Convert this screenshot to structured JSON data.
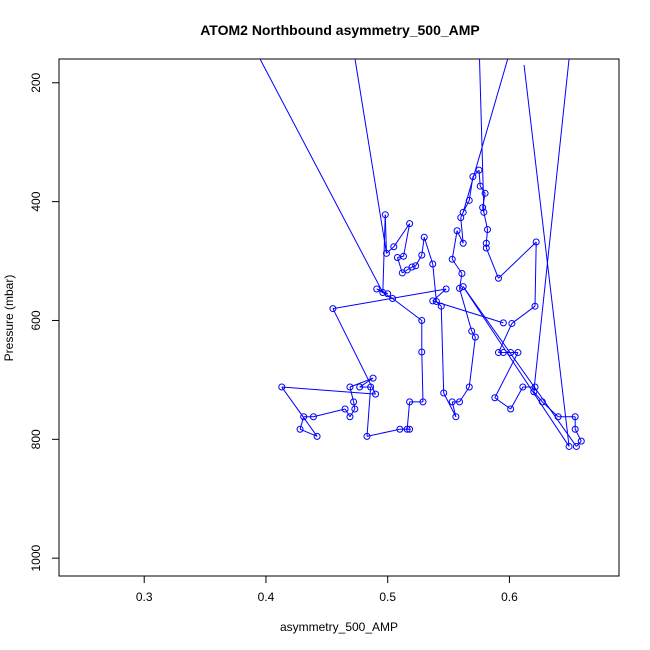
{
  "chart_data": {
    "type": "line",
    "title": "ATOM2 Northbound asymmetry_500_AMP",
    "xlabel": "asymmetry_500_AMP",
    "ylabel": "Pressure (mbar)",
    "xlim": [
      0.23,
      0.69
    ],
    "ylim": [
      1030,
      160
    ],
    "y_reversed": true,
    "x_ticks": [
      0.3,
      0.4,
      0.5,
      0.6
    ],
    "x_tick_labels": [
      "0.3",
      "0.4",
      "0.5",
      "0.6"
    ],
    "y_ticks": [
      200,
      400,
      600,
      800,
      1000
    ],
    "y_tick_labels": [
      "200",
      "400",
      "600",
      "800",
      "1000"
    ],
    "grid": false,
    "legend": "none",
    "series_color": "#0000ff",
    "points": [
      [
        0.649,
        812
      ],
      [
        0.655,
        812
      ],
      [
        0.659,
        803
      ],
      [
        0.654,
        783
      ],
      [
        0.654,
        762
      ],
      [
        0.64,
        762
      ],
      [
        0.627,
        737
      ],
      [
        0.62,
        720
      ],
      [
        0.621,
        712
      ],
      [
        0.611,
        712
      ],
      [
        0.601,
        749
      ],
      [
        0.588,
        730
      ],
      [
        0.607,
        654
      ],
      [
        0.601,
        654
      ],
      [
        0.595,
        654
      ],
      [
        0.591,
        654
      ],
      [
        0.602,
        605
      ],
      [
        0.621,
        576
      ],
      [
        0.622,
        468
      ],
      [
        0.591,
        529
      ],
      [
        0.581,
        478
      ],
      [
        0.581,
        470
      ],
      [
        0.582,
        447
      ],
      [
        0.579,
        418
      ],
      [
        0.578,
        410
      ],
      [
        0.58,
        386
      ],
      [
        0.576,
        374
      ],
      [
        0.575,
        347
      ],
      [
        0.57,
        358
      ],
      [
        0.567,
        398
      ],
      [
        0.562,
        418
      ],
      [
        0.56,
        427
      ],
      [
        0.562,
        470
      ],
      [
        0.557,
        449
      ],
      [
        0.553,
        497
      ],
      [
        0.561,
        521
      ],
      [
        0.559,
        546
      ],
      [
        0.569,
        618
      ],
      [
        0.572,
        628
      ],
      [
        0.567,
        712
      ],
      [
        0.559,
        737
      ],
      [
        0.553,
        737
      ],
      [
        0.556,
        762
      ],
      [
        0.546,
        722
      ],
      [
        0.544,
        576
      ],
      [
        0.54,
        568
      ],
      [
        0.537,
        505
      ],
      [
        0.53,
        460
      ],
      [
        0.528,
        490
      ],
      [
        0.523,
        508
      ],
      [
        0.52,
        510
      ],
      [
        0.516,
        515
      ],
      [
        0.512,
        520
      ],
      [
        0.508,
        494
      ],
      [
        0.513,
        492
      ],
      [
        0.518,
        437
      ],
      [
        0.505,
        476
      ],
      [
        0.499,
        487
      ],
      [
        0.498,
        422
      ],
      [
        0.496,
        553
      ],
      [
        0.5,
        555
      ],
      [
        0.491,
        547
      ],
      [
        0.504,
        563
      ],
      [
        0.528,
        600
      ],
      [
        0.528,
        653
      ],
      [
        0.529,
        737
      ],
      [
        0.518,
        737
      ],
      [
        0.516,
        783
      ],
      [
        0.518,
        783
      ],
      [
        0.51,
        783
      ],
      [
        0.483,
        795
      ],
      [
        0.486,
        712
      ],
      [
        0.477,
        712
      ],
      [
        0.488,
        697
      ],
      [
        0.469,
        712
      ],
      [
        0.472,
        737
      ],
      [
        0.473,
        749
      ],
      [
        0.469,
        762
      ],
      [
        0.465,
        749
      ],
      [
        0.439,
        762
      ],
      [
        0.431,
        762
      ],
      [
        0.428,
        783
      ],
      [
        0.442,
        795
      ],
      [
        0.413,
        712
      ],
      [
        0.49,
        724
      ],
      [
        0.455,
        580
      ],
      [
        0.548,
        547
      ],
      [
        0.537,
        567
      ],
      [
        0.562,
        543
      ],
      [
        0.595,
        604
      ]
    ],
    "line_order": [
      0,
      88,
      1,
      2,
      3,
      4,
      5,
      6,
      7,
      8,
      9,
      10,
      11,
      12,
      13,
      14,
      15,
      16,
      17,
      18,
      19,
      20,
      21,
      22,
      23,
      24,
      25,
      26,
      27,
      28,
      29,
      30,
      31,
      32,
      33,
      34,
      35,
      36,
      37,
      38,
      39,
      40,
      41,
      42,
      43,
      44,
      45,
      46,
      47,
      48,
      49,
      50,
      51,
      52,
      53,
      54,
      55,
      56,
      57,
      58,
      59,
      60,
      61,
      62,
      63,
      64,
      65,
      66,
      67,
      68,
      69,
      70,
      71,
      72,
      73,
      74,
      75,
      76,
      77,
      78,
      79,
      80,
      81,
      82,
      83,
      84,
      85,
      86,
      87,
      89
    ]
  }
}
